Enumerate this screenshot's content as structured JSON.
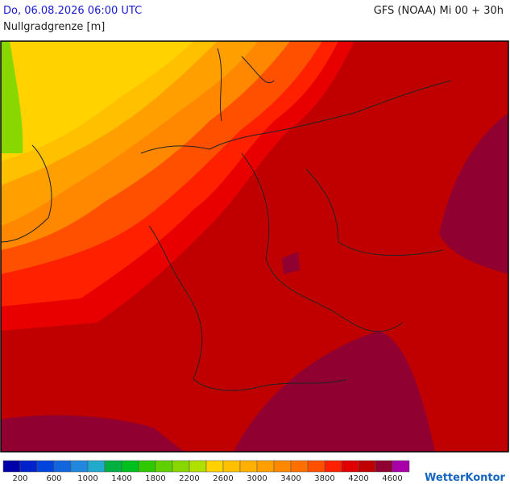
{
  "header": {
    "date": "Do, 06.08.2026 06:00 UTC",
    "model": "GFS (NOAA) Mi 00 + 30h",
    "subtitle": "Nullgradgrenze [m]"
  },
  "legend": {
    "colors": [
      "#0000aa",
      "#0022cc",
      "#0044dd",
      "#1166dd",
      "#2288dd",
      "#22aacc",
      "#00b040",
      "#00c020",
      "#30c800",
      "#60d000",
      "#88d800",
      "#b0e000",
      "#ffd200",
      "#ffc000",
      "#ffb000",
      "#ffa000",
      "#ff8800",
      "#ff7000",
      "#ff5000",
      "#ff2000",
      "#e00000",
      "#c00000",
      "#900030",
      "#aa00aa"
    ],
    "ticks": [
      200,
      600,
      1000,
      1400,
      1800,
      2200,
      2600,
      3000,
      3400,
      3800,
      4200,
      4600
    ]
  },
  "brand": "WetterKontor"
}
